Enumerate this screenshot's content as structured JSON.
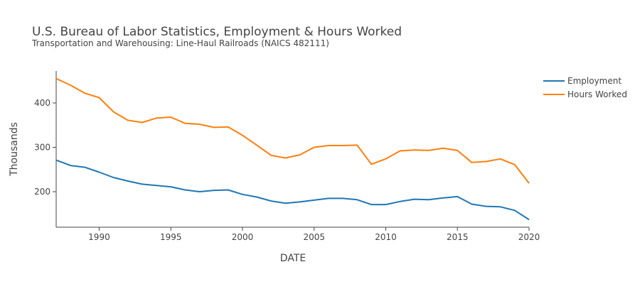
{
  "chart_data": {
    "type": "line",
    "title": "U.S. Bureau of Labor Statistics, Employment & Hours Worked",
    "subtitle": "Transportation and Warehousing: Line-Haul Railroads (NAICS 482111)",
    "xlabel": "DATE",
    "ylabel": "Thousands",
    "xlim": [
      1987,
      2020
    ],
    "ylim": [
      120,
      472
    ],
    "x_ticks": [
      1990,
      1995,
      2000,
      2005,
      2010,
      2015,
      2020
    ],
    "y_ticks": [
      200,
      300,
      400
    ],
    "grid": false,
    "legend_position": "top-right",
    "x": [
      1987,
      1988,
      1989,
      1990,
      1991,
      1992,
      1993,
      1994,
      1995,
      1996,
      1997,
      1998,
      1999,
      2000,
      2001,
      2002,
      2003,
      2004,
      2005,
      2006,
      2007,
      2008,
      2009,
      2010,
      2011,
      2012,
      2013,
      2014,
      2015,
      2016,
      2017,
      2018,
      2019,
      2020
    ],
    "series": [
      {
        "name": "Employment",
        "color": "#1f77b4",
        "values": [
          271,
          259,
          255,
          244,
          232,
          224,
          217,
          214,
          211,
          204,
          200,
          203,
          204,
          194,
          188,
          179,
          174,
          177,
          181,
          185,
          185,
          182,
          171,
          171,
          178,
          183,
          182,
          186,
          189,
          172,
          167,
          166,
          158,
          137
        ]
      },
      {
        "name": "Hours Worked",
        "color": "#ff7f0e",
        "values": [
          455,
          440,
          422,
          412,
          380,
          361,
          356,
          366,
          368,
          354,
          352,
          345,
          346,
          327,
          305,
          282,
          276,
          283,
          300,
          304,
          304,
          305,
          262,
          274,
          292,
          294,
          293,
          298,
          293,
          266,
          268,
          274,
          261,
          219
        ]
      }
    ]
  }
}
